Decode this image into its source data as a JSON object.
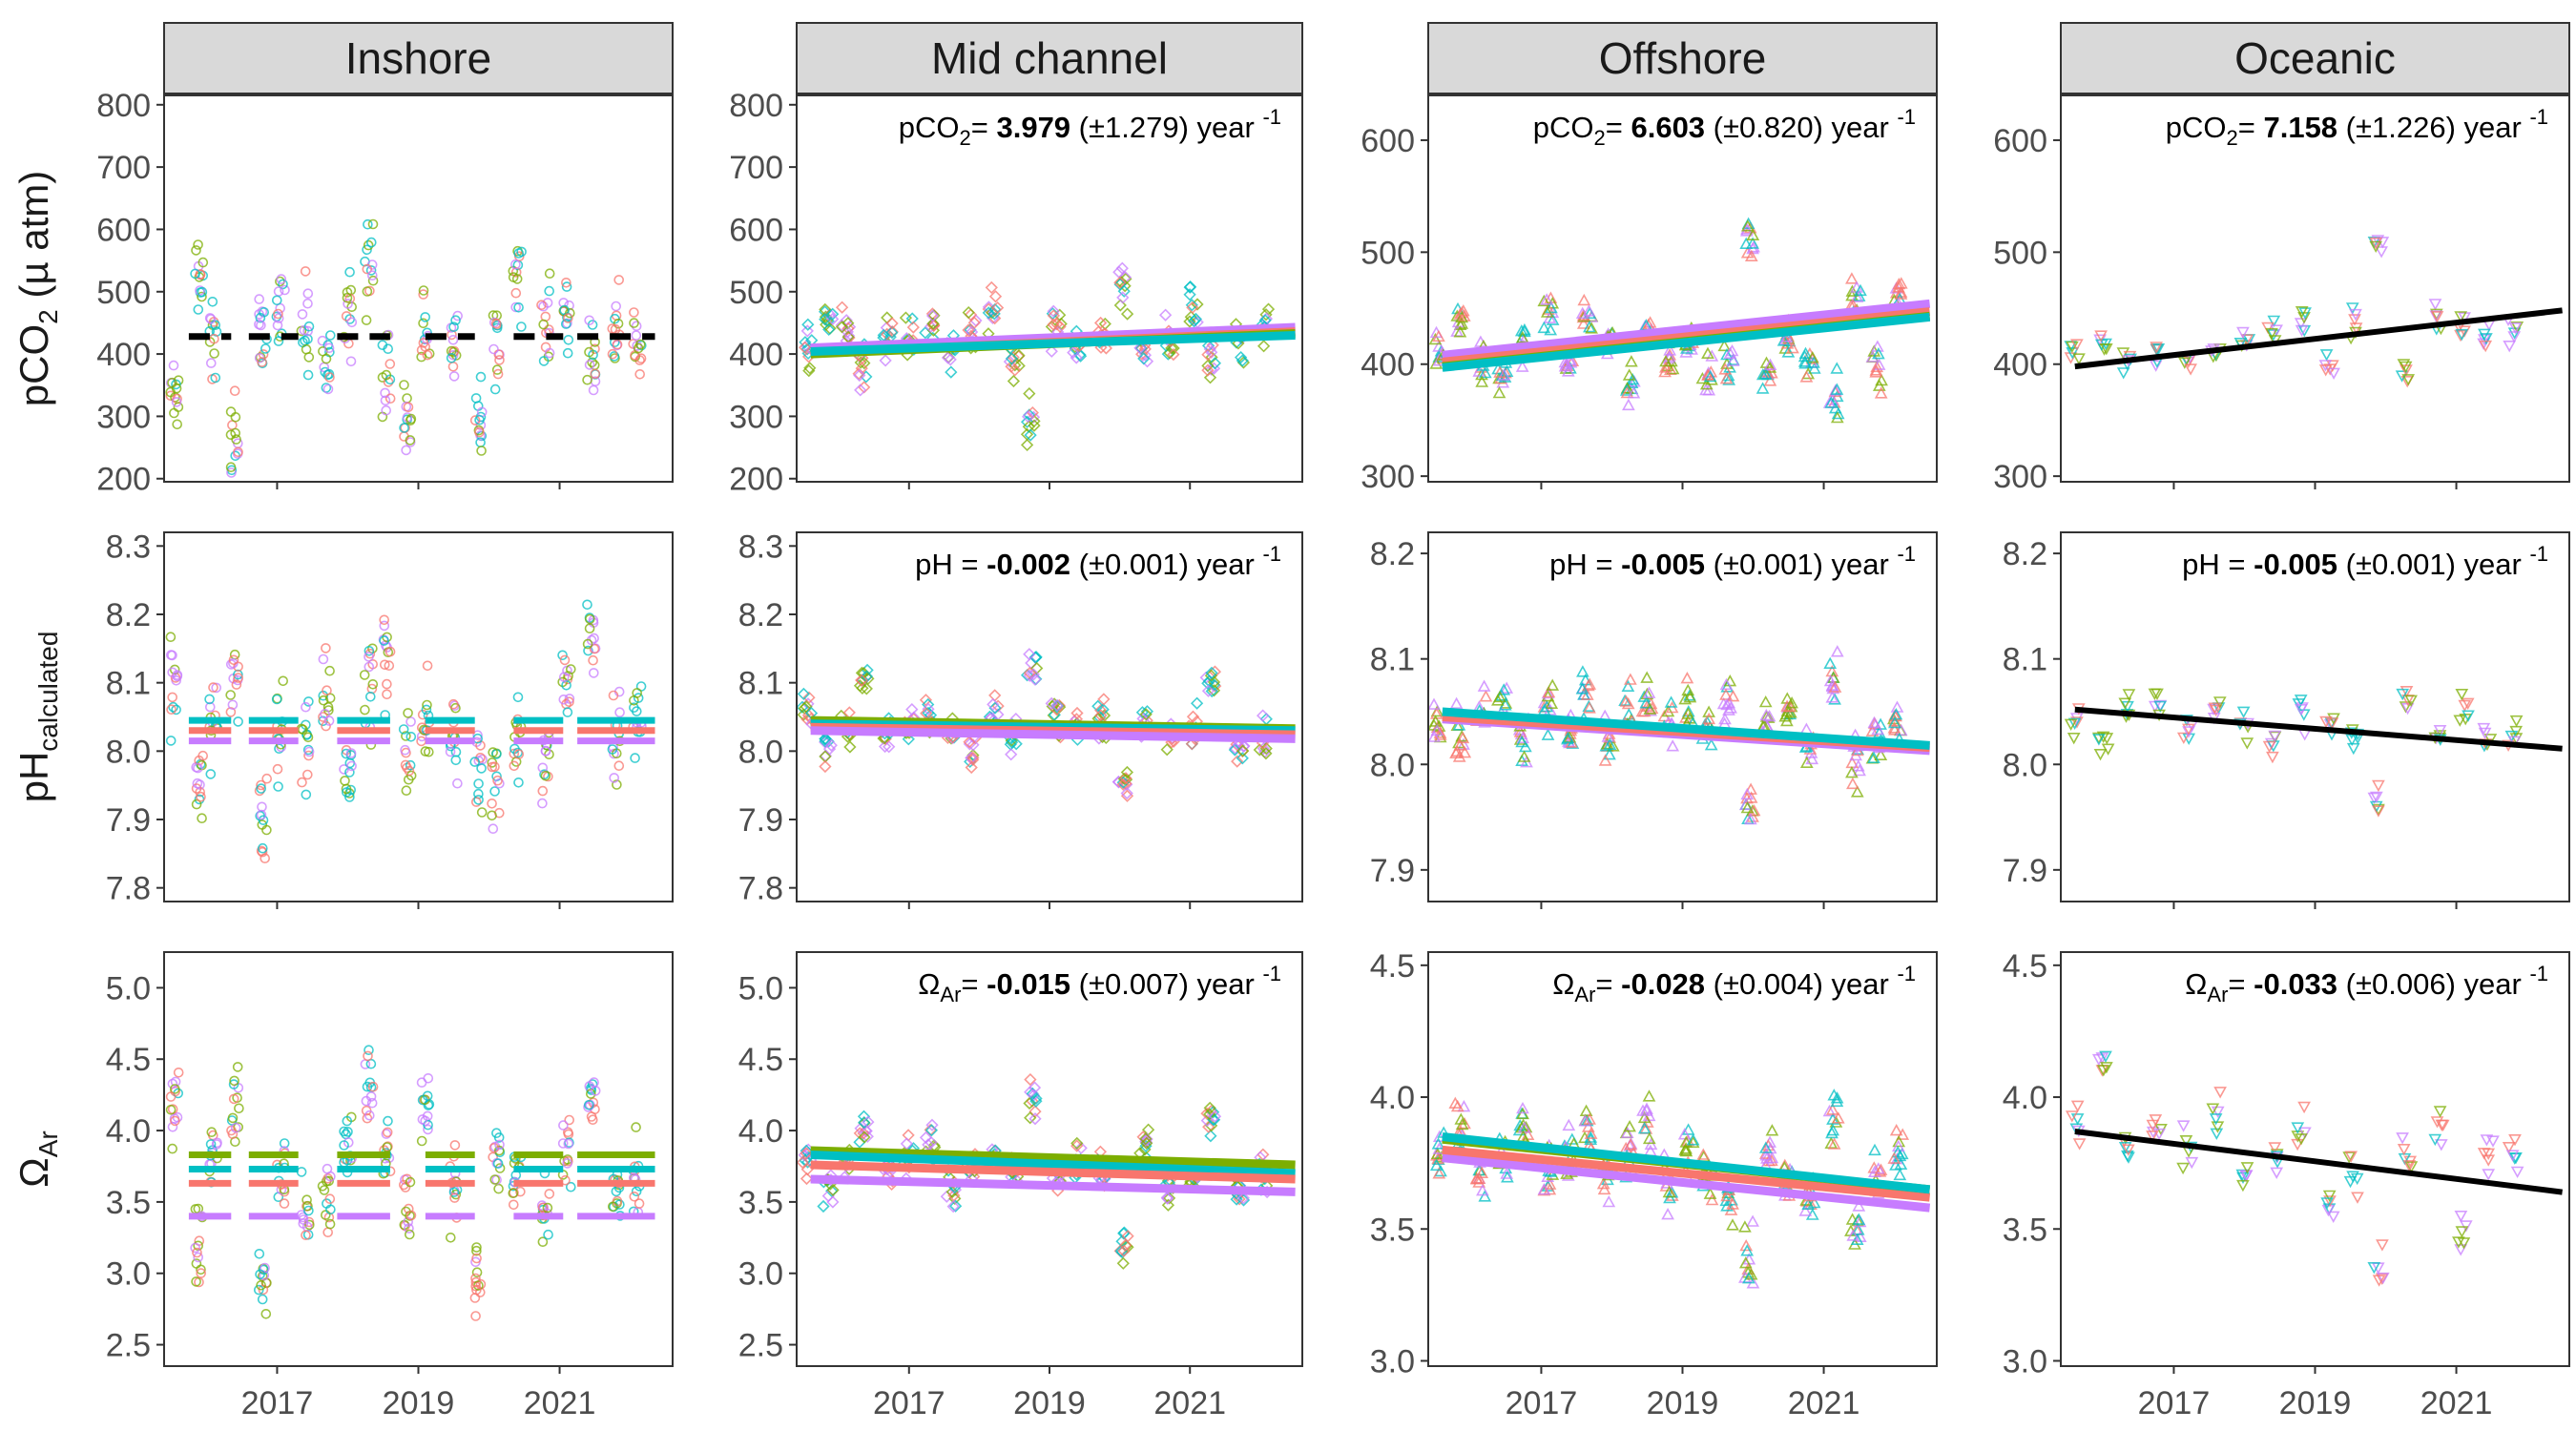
{
  "colors": {
    "series_1": "#F8766D",
    "series_2": "#7CAE00",
    "series_3": "#00BFC4",
    "series_4": "#C77CFF",
    "trend_single": "#000000"
  },
  "facets": {
    "columns": [
      "Inshore",
      "Mid channel",
      "Offshore",
      "Oceanic"
    ]
  },
  "axes": {
    "x_ticks": [
      "2017",
      "2019",
      "2021"
    ],
    "row_titles": [
      {
        "main": "pCO",
        "sub": "2",
        "tail": " (µ atm)"
      },
      {
        "main": "pH",
        "sub": "calculated",
        "tail": ""
      },
      {
        "main": "Ω",
        "sub": "Ar",
        "tail": ""
      }
    ]
  },
  "annotations": [
    {
      "row": 0,
      "col": 1,
      "var": "pCO",
      "sub": "2",
      "eq": "= ",
      "value": "3.979",
      "se": " (±1.279) year ",
      "sup": "-1"
    },
    {
      "row": 0,
      "col": 2,
      "var": "pCO",
      "sub": "2",
      "eq": "= ",
      "value": "6.603",
      "se": " (±0.820) year ",
      "sup": "-1"
    },
    {
      "row": 0,
      "col": 3,
      "var": "pCO",
      "sub": "2",
      "eq": "= ",
      "value": "7.158",
      "se": " (±1.226) year ",
      "sup": "-1"
    },
    {
      "row": 1,
      "col": 1,
      "var": "pH",
      "sub": "",
      "eq": " = ",
      "value": "-0.002",
      "se": " (±0.001) year ",
      "sup": "-1"
    },
    {
      "row": 1,
      "col": 2,
      "var": "pH",
      "sub": "",
      "eq": " = ",
      "value": "-0.005",
      "se": " (±0.001) year ",
      "sup": "-1"
    },
    {
      "row": 1,
      "col": 3,
      "var": "pH",
      "sub": "",
      "eq": " = ",
      "value": "-0.005",
      "se": " (±0.001) year ",
      "sup": "-1"
    },
    {
      "row": 2,
      "col": 1,
      "var": "Ω",
      "sub": "Ar",
      "eq": "= ",
      "value": "-0.015",
      "se": " (±0.007) year ",
      "sup": "-1"
    },
    {
      "row": 2,
      "col": 2,
      "var": "Ω",
      "sub": "Ar",
      "eq": "= ",
      "value": "-0.028",
      "se": " (±0.004) year ",
      "sup": "-1"
    },
    {
      "row": 2,
      "col": 3,
      "var": "Ω",
      "sub": "Ar",
      "eq": "= ",
      "value": "-0.033",
      "se": " (±0.006) year ",
      "sup": "-1"
    }
  ],
  "chart_data": {
    "type": "scatter",
    "layout": "facet grid 3 rows x 4 columns",
    "x_range": [
      2015.4,
      2022.6
    ],
    "x_ticks": [
      2017,
      2019,
      2021
    ],
    "rows": [
      {
        "variable": "pCO2 (µ atm)",
        "yticks": [
          [
            200,
            300,
            400,
            500,
            600,
            700,
            800
          ],
          [
            200,
            300,
            400,
            500,
            600,
            700,
            800
          ],
          [
            300,
            400,
            500,
            600
          ],
          [
            300,
            400,
            500,
            600
          ]
        ],
        "ylim": [
          [
            195,
            815
          ],
          [
            195,
            815
          ],
          [
            295,
            640
          ],
          [
            295,
            640
          ]
        ]
      },
      {
        "variable": "pH calculated",
        "yticks": [
          [
            7.8,
            7.9,
            8.0,
            8.1,
            8.2,
            8.3
          ],
          [
            7.8,
            7.9,
            8.0,
            8.1,
            8.2,
            8.3
          ],
          [
            7.9,
            8.0,
            8.1,
            8.2
          ],
          [
            7.9,
            8.0,
            8.1,
            8.2
          ]
        ],
        "ylim": [
          [
            7.78,
            8.32
          ],
          [
            7.78,
            8.32
          ],
          [
            7.87,
            8.22
          ],
          [
            7.87,
            8.22
          ]
        ]
      },
      {
        "variable": "ΩAr",
        "yticks": [
          [
            2.5,
            3.0,
            3.5,
            4.0,
            4.5,
            5.0
          ],
          [
            2.5,
            3.0,
            3.5,
            4.0,
            4.5,
            5.0
          ],
          [
            3.0,
            3.5,
            4.0,
            4.5
          ],
          [
            3.0,
            3.5,
            4.0,
            4.5
          ]
        ],
        "ylim": [
          [
            2.35,
            5.25
          ],
          [
            2.35,
            5.25
          ],
          [
            2.98,
            4.55
          ],
          [
            2.98,
            4.55
          ]
        ]
      }
    ],
    "markers": [
      "circle",
      "diamond",
      "triangle-up",
      "triangle-down"
    ],
    "annual_means": {
      "inshore_pco2": [
        428
      ],
      "inshore_ph": [
        8.045,
        8.03,
        8.015
      ],
      "inshore_omega": [
        3.83,
        3.73,
        3.63,
        3.4
      ]
    },
    "inshore_segments_x": [
      [
        2015.75,
        2016.35
      ],
      [
        2016.6,
        2017.3
      ],
      [
        2017.85,
        2018.6
      ],
      [
        2019.1,
        2019.8
      ],
      [
        2020.35,
        2021.05
      ],
      [
        2021.25,
        2022.35
      ]
    ],
    "trends": [
      {
        "row": 0,
        "col": 1,
        "lines": [
          {
            "color": "series_4",
            "y": [
              410,
              443
            ]
          },
          {
            "color": "series_1",
            "y": [
              402,
              436
            ]
          },
          {
            "color": "series_2",
            "y": [
              400,
              433
            ]
          },
          {
            "color": "series_3",
            "y": [
              404,
              430
            ]
          }
        ]
      },
      {
        "row": 0,
        "col": 2,
        "lines": [
          {
            "color": "series_4",
            "y": [
              408,
              454
            ]
          },
          {
            "color": "series_1",
            "y": [
              402,
              447
            ]
          },
          {
            "color": "series_2",
            "y": [
              398,
              443
            ]
          },
          {
            "color": "series_3",
            "y": [
              397,
              442
            ]
          }
        ]
      },
      {
        "row": 0,
        "col": 3,
        "lines": [
          {
            "color": "trend_single",
            "y": [
              398,
              448
            ]
          }
        ]
      },
      {
        "row": 1,
        "col": 1,
        "lines": [
          {
            "color": "series_2",
            "y": [
              8.045,
              8.033
            ]
          },
          {
            "color": "series_3",
            "y": [
              8.04,
              8.03
            ]
          },
          {
            "color": "series_1",
            "y": [
              8.035,
              8.024
            ]
          },
          {
            "color": "series_4",
            "y": [
              8.03,
              8.018
            ]
          }
        ]
      },
      {
        "row": 1,
        "col": 2,
        "lines": [
          {
            "color": "series_4",
            "y": [
              8.043,
              8.013
            ]
          },
          {
            "color": "series_1",
            "y": [
              8.045,
              8.016
            ]
          },
          {
            "color": "series_3",
            "y": [
              8.05,
              8.018
            ]
          }
        ]
      },
      {
        "row": 1,
        "col": 3,
        "lines": [
          {
            "color": "trend_single",
            "y": [
              8.052,
              8.015
            ]
          }
        ]
      },
      {
        "row": 2,
        "col": 1,
        "lines": [
          {
            "color": "series_2",
            "y": [
              3.86,
              3.76
            ]
          },
          {
            "color": "series_3",
            "y": [
              3.83,
              3.7
            ]
          },
          {
            "color": "series_1",
            "y": [
              3.76,
              3.66
            ]
          },
          {
            "color": "series_4",
            "y": [
              3.66,
              3.57
            ]
          }
        ]
      },
      {
        "row": 2,
        "col": 2,
        "lines": [
          {
            "color": "series_4",
            "y": [
              3.77,
              3.58
            ]
          },
          {
            "color": "series_1",
            "y": [
              3.8,
              3.62
            ]
          },
          {
            "color": "series_2",
            "y": [
              3.84,
              3.65
            ]
          },
          {
            "color": "series_3",
            "y": [
              3.85,
              3.65
            ]
          }
        ]
      },
      {
        "row": 2,
        "col": 3,
        "lines": [
          {
            "color": "trend_single",
            "y": [
              3.87,
              3.64
            ]
          }
        ]
      }
    ],
    "scatter_clusters": [
      {
        "col": 0,
        "x": [
          2015.55,
          2015.9,
          2016.1,
          2016.4,
          2016.8,
          2017.05,
          2017.4,
          2017.7,
          2018.0,
          2018.3,
          2018.55,
          2018.85,
          2019.1,
          2019.5,
          2019.85,
          2020.1,
          2020.4,
          2020.8,
          2021.1,
          2021.45,
          2021.8,
          2022.1
        ],
        "pco2_center": [
          320,
          520,
          430,
          260,
          430,
          470,
          430,
          390,
          470,
          540,
          360,
          320,
          450,
          420,
          310,
          430,
          520,
          450,
          470,
          380,
          460,
          430
        ],
        "pco2_spread": 130,
        "ph_center": [
          8.1,
          7.95,
          8.05,
          8.1,
          7.9,
          8.02,
          8.0,
          8.08,
          7.98,
          8.1,
          8.15,
          8.0,
          8.05,
          8.02,
          7.98,
          7.95,
          8.02,
          8.0,
          8.1,
          8.15,
          8.02,
          8.05
        ],
        "ph_spread": 0.12,
        "omega_center": [
          4.2,
          3.2,
          3.9,
          4.2,
          3.0,
          3.7,
          3.4,
          3.6,
          3.8,
          4.3,
          3.9,
          3.5,
          4.2,
          3.6,
          3.0,
          3.8,
          3.7,
          3.5,
          3.9,
          4.2,
          3.6,
          3.7
        ],
        "omega_spread": 0.45
      },
      {
        "col": 1,
        "x": [
          2015.55,
          2015.85,
          2016.1,
          2016.35,
          2016.7,
          2017.0,
          2017.3,
          2017.6,
          2017.9,
          2018.2,
          2018.5,
          2018.75,
          2019.1,
          2019.4,
          2019.75,
          2020.05,
          2020.35,
          2020.7,
          2021.05,
          2021.3,
          2021.7,
          2022.05
        ],
        "pco2_center": [
          400,
          460,
          440,
          380,
          420,
          430,
          450,
          400,
          440,
          470,
          390,
          300,
          440,
          410,
          420,
          510,
          410,
          420,
          470,
          400,
          420,
          450
        ],
        "pco2_spread": 60,
        "ph_center": [
          8.06,
          8.02,
          8.03,
          8.1,
          8.02,
          8.04,
          8.05,
          8.03,
          8.0,
          8.05,
          8.02,
          8.12,
          8.05,
          8.04,
          8.05,
          7.96,
          8.04,
          8.02,
          8.03,
          8.1,
          8.0,
          8.02
        ],
        "ph_spread": 0.05,
        "omega_center": [
          3.8,
          3.6,
          3.8,
          4.0,
          3.7,
          3.8,
          3.9,
          3.6,
          3.7,
          3.8,
          3.7,
          4.2,
          3.7,
          3.8,
          3.7,
          3.2,
          3.9,
          3.6,
          3.7,
          4.1,
          3.6,
          3.7
        ],
        "omega_spread": 0.22
      },
      {
        "col": 2,
        "x": [
          2015.55,
          2015.85,
          2016.15,
          2016.45,
          2016.75,
          2017.1,
          2017.4,
          2017.65,
          2017.95,
          2018.25,
          2018.5,
          2018.8,
          2019.1,
          2019.35,
          2019.65,
          2019.95,
          2020.2,
          2020.5,
          2020.8,
          2021.15,
          2021.45,
          2021.75,
          2022.05
        ],
        "pco2_center": [
          410,
          440,
          400,
          390,
          420,
          450,
          400,
          440,
          420,
          380,
          430,
          400,
          420,
          390,
          400,
          510,
          390,
          420,
          400,
          370,
          460,
          400,
          460
        ],
        "pco2_spread": 30,
        "ph_center": [
          8.04,
          8.03,
          8.05,
          8.06,
          8.02,
          8.05,
          8.03,
          8.07,
          8.02,
          8.05,
          8.06,
          8.04,
          8.05,
          8.03,
          8.05,
          7.96,
          8.04,
          8.05,
          8.02,
          8.08,
          8.0,
          8.02,
          8.04
        ],
        "ph_spread": 0.04,
        "omega_center": [
          3.8,
          3.9,
          3.7,
          3.8,
          3.9,
          3.7,
          3.8,
          3.9,
          3.7,
          3.8,
          3.9,
          3.7,
          3.8,
          3.7,
          3.6,
          3.4,
          3.8,
          3.7,
          3.6,
          3.9,
          3.5,
          3.7,
          3.8
        ],
        "omega_spread": 0.18
      },
      {
        "col": 3,
        "x": [
          2015.6,
          2016.0,
          2016.35,
          2016.75,
          2017.2,
          2017.6,
          2018.0,
          2018.4,
          2018.8,
          2019.2,
          2019.55,
          2019.9,
          2020.3,
          2020.75,
          2021.1,
          2021.45,
          2021.8
        ],
        "pco2_center": [
          410,
          420,
          400,
          410,
          400,
          410,
          420,
          430,
          440,
          400,
          440,
          510,
          390,
          440,
          430,
          420,
          430
        ],
        "pco2_spread": 22,
        "ph_center": [
          8.04,
          8.02,
          8.05,
          8.06,
          8.03,
          8.05,
          8.04,
          8.02,
          8.05,
          8.04,
          8.03,
          7.96,
          8.06,
          8.03,
          8.05,
          8.02,
          8.03
        ],
        "ph_spread": 0.025,
        "omega_center": [
          3.9,
          4.1,
          3.8,
          3.9,
          3.8,
          3.9,
          3.7,
          3.8,
          3.9,
          3.6,
          3.7,
          3.35,
          3.8,
          3.9,
          3.5,
          3.8,
          3.8
        ],
        "omega_spread": 0.15
      }
    ]
  }
}
